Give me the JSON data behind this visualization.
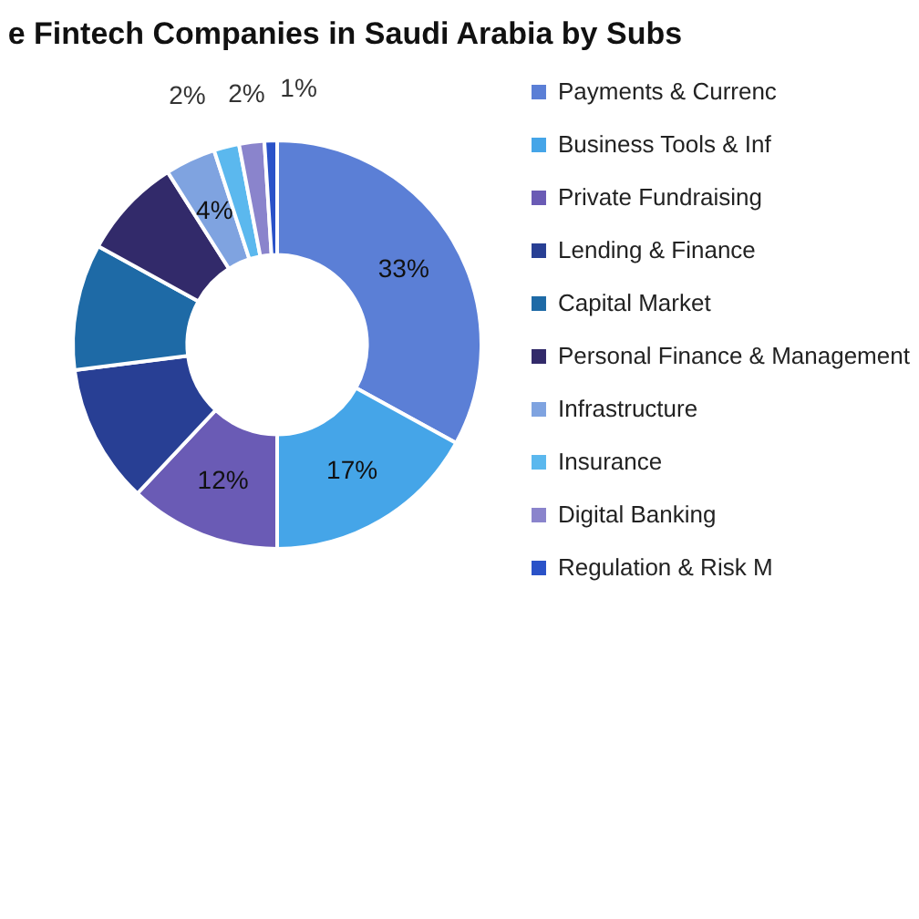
{
  "chart_data": {
    "type": "donut",
    "title": "e Fintech Companies in Saudi Arabia by Subs",
    "categories": [
      "Payments & Currenc",
      "Business Tools & Inf",
      "Private Fundraising",
      "Lending & Finance",
      "Capital Market",
      "Personal Finance & Management",
      "Infrastructure",
      "Insurance",
      "Digital Banking",
      "Regulation & Risk M"
    ],
    "values": [
      33,
      17,
      12,
      11,
      10,
      8,
      4,
      2,
      2,
      1
    ],
    "colors": [
      "#5b7fd6",
      "#45a5e8",
      "#6a5bb5",
      "#283f94",
      "#1e6aa6",
      "#322a6a",
      "#7fa3e0",
      "#5bb8ee",
      "#8a84cc",
      "#2a52c8"
    ],
    "value_labels": [
      "33%",
      "17%",
      "12%",
      null,
      null,
      null,
      "4%",
      "2%",
      "2%",
      "1%"
    ],
    "legend": "right"
  }
}
